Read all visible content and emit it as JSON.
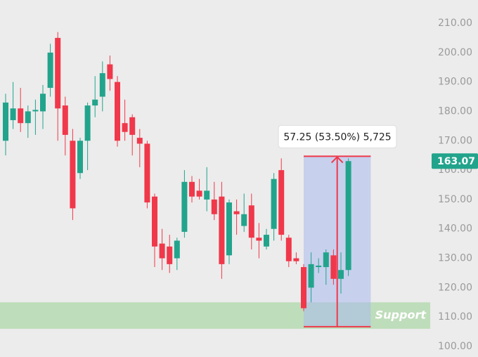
{
  "chart_data": {
    "type": "candlestick",
    "open": [
      170,
      177,
      181,
      176,
      180,
      180,
      188,
      205,
      182,
      170,
      159,
      170,
      182,
      185,
      196,
      190,
      176,
      178,
      171,
      169,
      151,
      135,
      134,
      130,
      139,
      156,
      153,
      150,
      150,
      151,
      131,
      146,
      141,
      148,
      137,
      134,
      140,
      160,
      137,
      130,
      127,
      120,
      127,
      127,
      131,
      123,
      126
    ],
    "high": [
      186,
      190,
      188,
      182,
      184,
      189,
      203,
      207,
      185,
      174,
      171,
      183,
      192,
      197,
      199,
      192,
      184,
      179,
      174,
      170,
      152,
      140,
      138,
      137,
      160,
      158,
      157,
      161,
      156,
      156,
      150,
      150,
      152,
      152,
      142,
      140,
      159,
      164,
      138,
      132,
      128,
      132,
      130,
      133,
      133,
      132,
      164
    ],
    "low": [
      165,
      174,
      173,
      171,
      172,
      174,
      185,
      170,
      165,
      143,
      157,
      160,
      178,
      180,
      187,
      168,
      170,
      165,
      161,
      147,
      127,
      126,
      125,
      126,
      137,
      149,
      150,
      146,
      143,
      123,
      128,
      138,
      139,
      133,
      130,
      133,
      136,
      136,
      127,
      128,
      112,
      115,
      125,
      121,
      121,
      118,
      124
    ],
    "close": [
      183,
      181,
      176,
      180,
      180.5,
      186,
      200,
      181,
      172,
      147,
      170,
      182,
      184,
      193,
      191,
      170,
      173,
      172,
      169,
      149,
      134,
      130,
      128,
      136,
      156,
      151,
      151,
      153,
      145,
      128,
      149,
      145,
      145,
      137,
      136,
      138,
      157,
      138,
      129,
      129,
      113,
      128,
      127.5,
      132,
      123,
      126,
      163.07
    ],
    "up_color": "#22a48c",
    "down_color": "#f0384a",
    "ylim": [
      96.4,
      217.9
    ],
    "yticks": [
      {
        "value": 100,
        "label": "100.00"
      },
      {
        "value": 110,
        "label": "110.00"
      },
      {
        "value": 120,
        "label": "120.00"
      },
      {
        "value": 130,
        "label": "130.00"
      },
      {
        "value": 140,
        "label": "140.00"
      },
      {
        "value": 150,
        "label": "150.00"
      },
      {
        "value": 160,
        "label": "160.00"
      },
      {
        "value": 170,
        "label": "170.00"
      },
      {
        "value": 180,
        "label": "180.00"
      },
      {
        "value": 190,
        "label": "190.00"
      },
      {
        "value": 200,
        "label": "200.00"
      },
      {
        "value": 210,
        "label": "210.00"
      }
    ],
    "last_price": {
      "value": 163.07,
      "label": "163.07"
    },
    "support_zone": {
      "label": "Support",
      "range": [
        106,
        115
      ]
    },
    "measure": {
      "label": "57.25 (53.50%) 5,725",
      "range": [
        106.7,
        164.7
      ],
      "start": 40,
      "end": 49
    }
  }
}
